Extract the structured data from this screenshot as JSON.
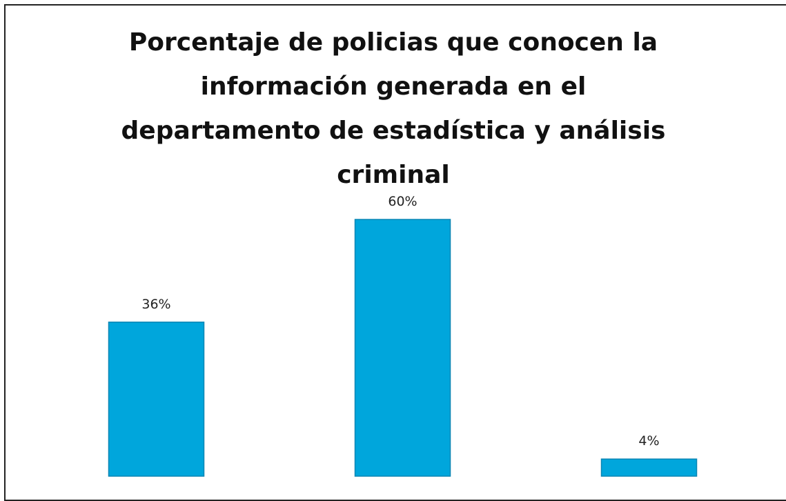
{
  "chart_data": {
    "type": "bar",
    "title": "Porcentaje de policias que conocen la información generada en el departamento de estadística y análisis criminal",
    "categories": [
      null,
      null,
      null
    ],
    "values": [
      36,
      60,
      4
    ],
    "value_labels": [
      "36%",
      "60%",
      "4%"
    ],
    "color": "#00a6dc"
  }
}
